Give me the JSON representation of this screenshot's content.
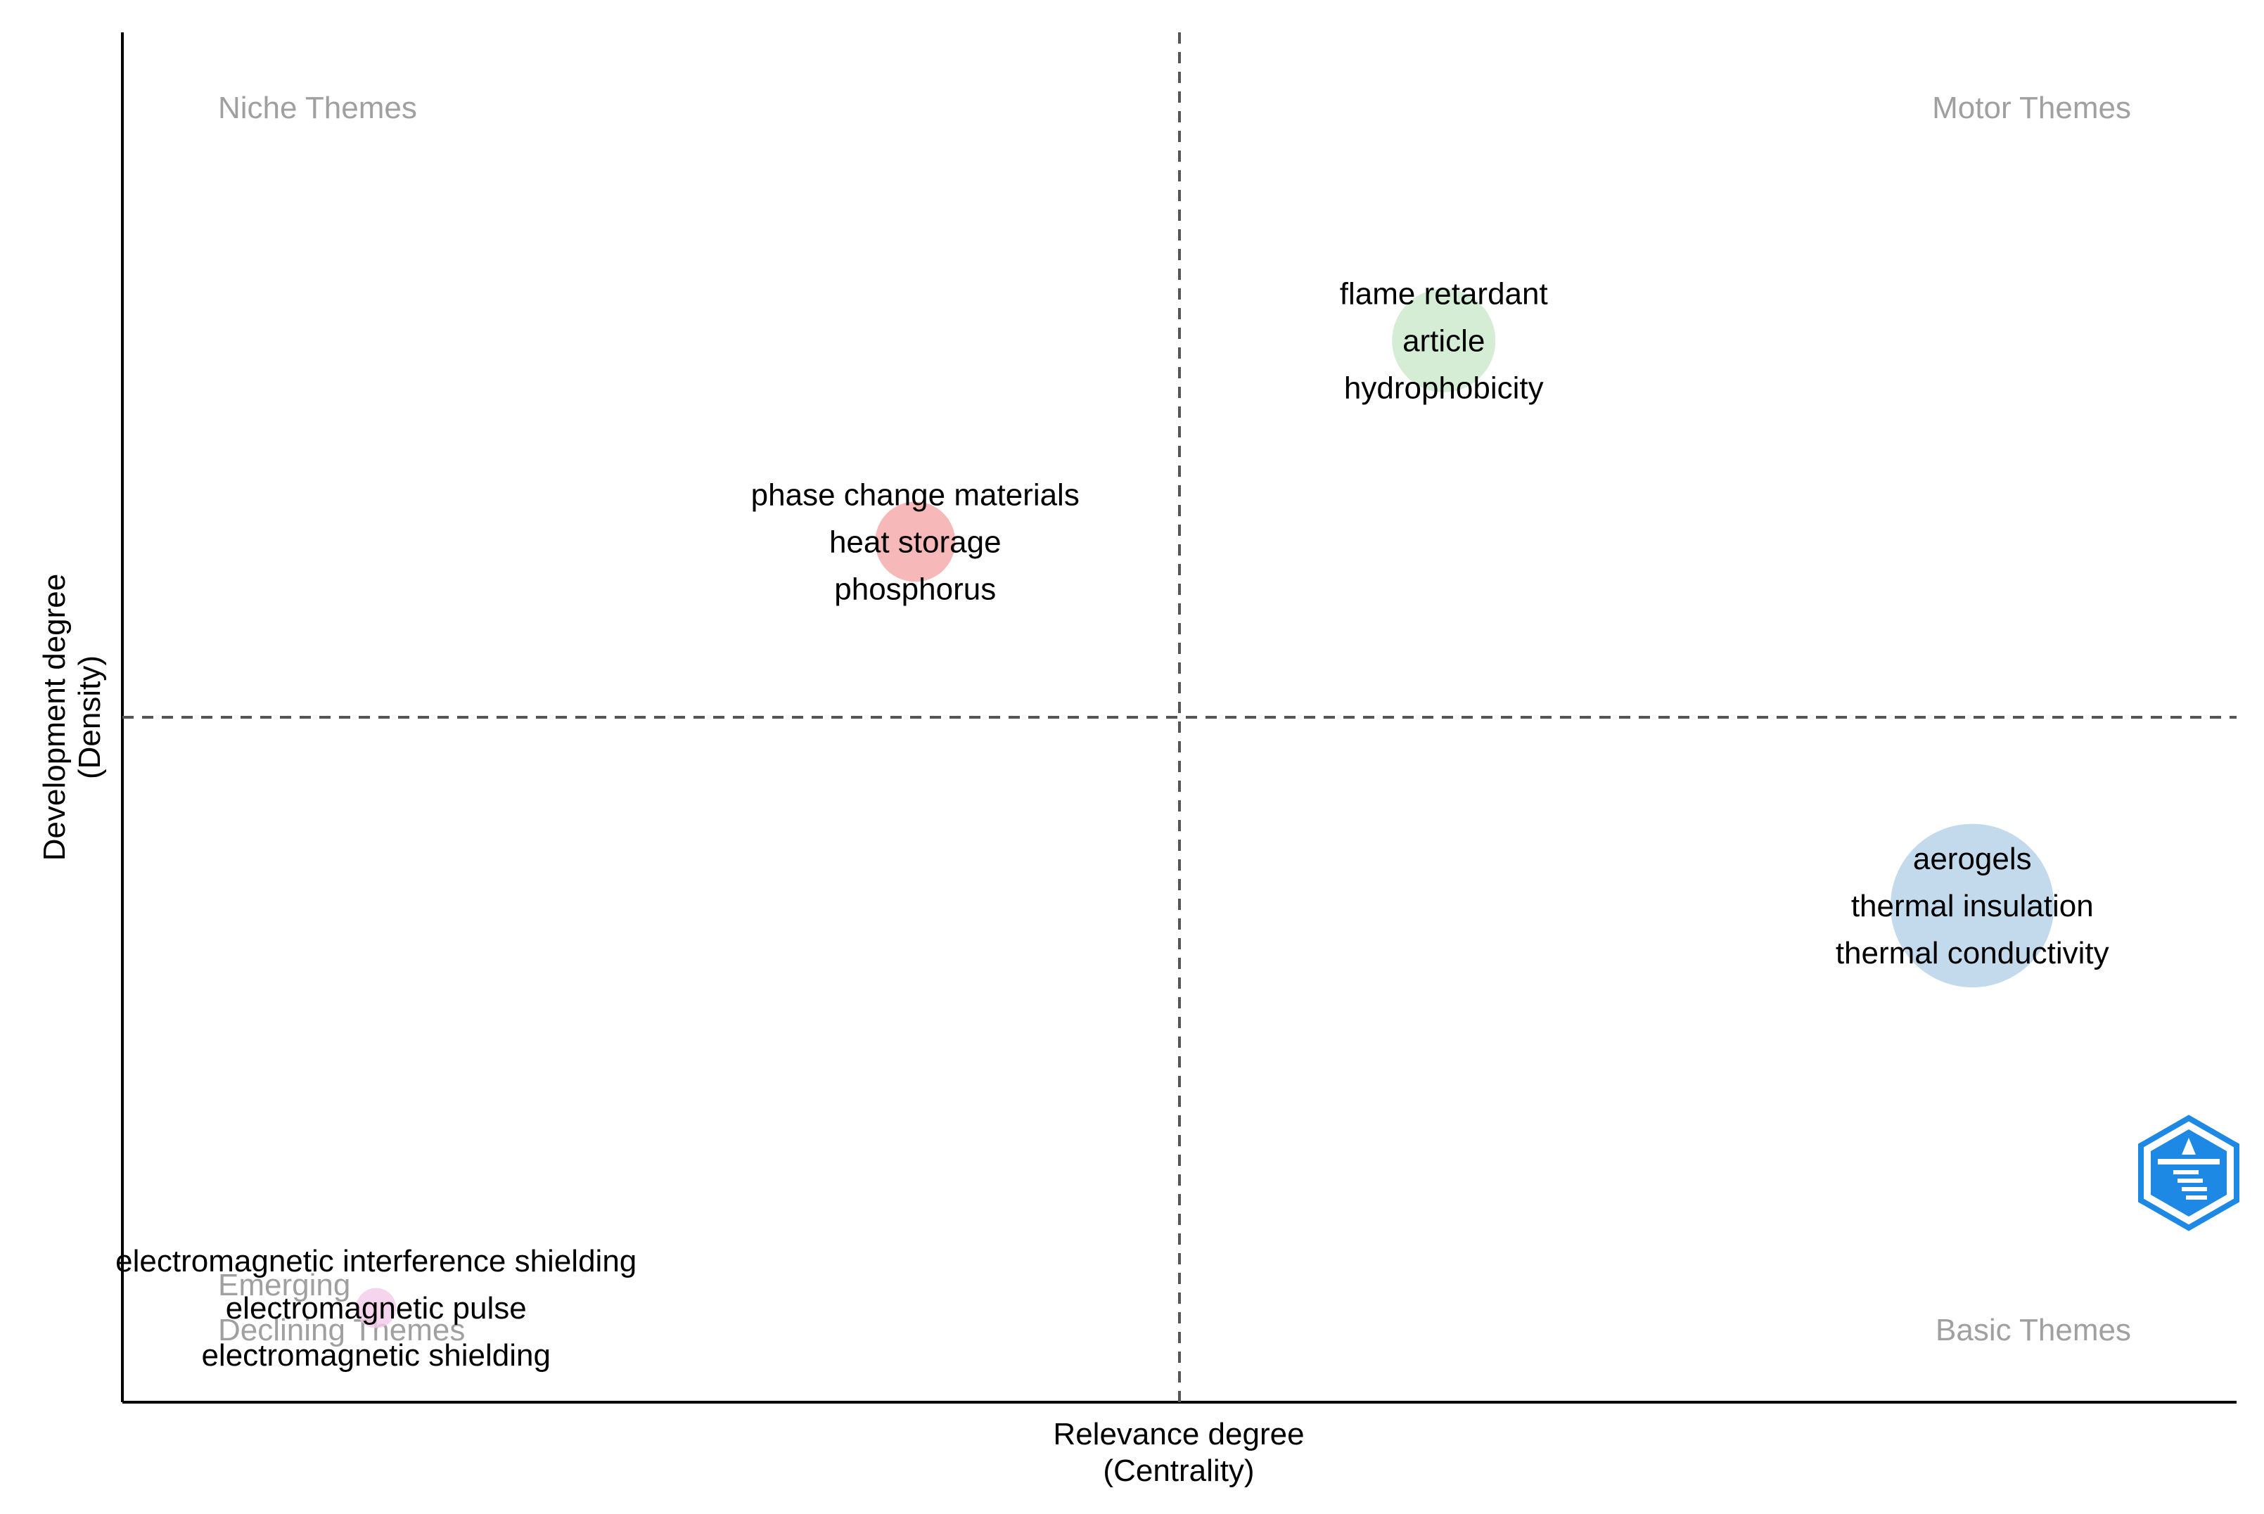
{
  "chart_data": {
    "type": "scatter",
    "title": "",
    "xlabel": "Relevance degree",
    "xlabel_sub": "(Centrality)",
    "ylabel": "Development degree",
    "ylabel_sub": "(Density)",
    "grid": false,
    "quadrant_labels": {
      "top_left": "Niche Themes",
      "top_right": "Motor Themes",
      "bottom_left": "Declining Themes",
      "bottom_right": "Basic Themes",
      "emerging": "Emerging"
    },
    "clusters": [
      {
        "color": "#b8d98f",
        "color_hex": "#c9e8c9",
        "x": 1.25,
        "y": 4.4,
        "size": 2,
        "labels": [
          "flame retardant",
          "article",
          "hydrophobicity"
        ]
      },
      {
        "color_hex": "#f4a6a6",
        "x": -1.25,
        "y": 2.05,
        "size": 1.2,
        "labels": [
          "phase change materials",
          "heat storage",
          "phosphorus"
        ]
      },
      {
        "color_hex": "#b3d1e6",
        "x": 3.75,
        "y": -2.2,
        "size": 5,
        "labels": [
          "aerogels",
          "thermal insulation",
          "thermal conductivity"
        ]
      },
      {
        "color_hex": "#f2cbe8",
        "x": -3.8,
        "y": -6.9,
        "size": 0.3,
        "labels": [
          "electromagnetic interference shielding",
          "electromagnetic pulse",
          "electromagnetic shielding"
        ]
      }
    ],
    "xlim": [
      -5,
      5
    ],
    "ylim": [
      -8,
      8
    ],
    "reference_lines": {
      "x": 0,
      "y": 0
    }
  },
  "colors": {
    "axis": "#000000",
    "dashed": "#555555",
    "quadrant_text": "#a0a0a0",
    "logo": "#1e88e5"
  },
  "icons": {
    "logo": "bibliometrix-logo-icon"
  }
}
